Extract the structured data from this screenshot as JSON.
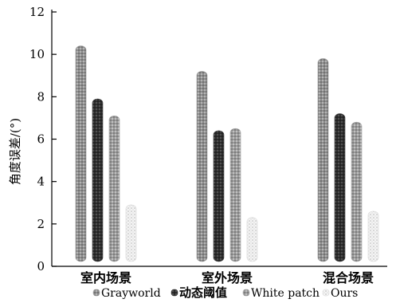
{
  "chart_data": {
    "type": "bar",
    "ylabel": "角度误差/(°)",
    "ylim": [
      0,
      12
    ],
    "yticks": [
      0,
      2,
      4,
      6,
      8,
      10,
      12
    ],
    "categories": [
      "室内场景",
      "室外场景",
      "混合场景"
    ],
    "series": [
      {
        "name": "Grayworld",
        "values": [
          10.4,
          9.2,
          9.8
        ],
        "color": "#9a9a9a"
      },
      {
        "name": "动态阈值",
        "values": [
          7.9,
          6.4,
          7.2
        ],
        "color": "#3c3c3c"
      },
      {
        "name": "White patch",
        "values": [
          7.1,
          6.5,
          6.8
        ],
        "color": "#9f9f9f"
      },
      {
        "name": "Ours",
        "values": [
          2.9,
          2.3,
          2.6
        ],
        "color": "#d6d6d6"
      }
    ],
    "grid": false,
    "legend_position": "bottom"
  }
}
